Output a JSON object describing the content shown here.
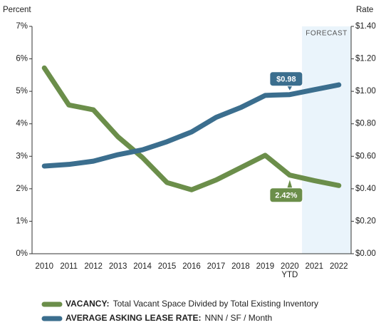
{
  "chart_data": {
    "type": "line",
    "ylabel": "Percent",
    "y2label": "Rate",
    "forecast_label": "FORECAST",
    "categories": [
      "2010",
      "2011",
      "2012",
      "2013",
      "2014",
      "2015",
      "2016",
      "2017",
      "2018",
      "2019",
      "2020 YTD",
      "2021",
      "2022"
    ],
    "forecast_from": "2021",
    "series": [
      {
        "name": "VACANCY:",
        "description": "Total Vacant Space Divided by Total Existing Inventory",
        "color": "#6b8e4a",
        "axis": "y",
        "values": [
          5.72,
          4.58,
          4.43,
          3.6,
          2.96,
          2.19,
          1.97,
          2.27,
          2.65,
          3.03,
          2.42,
          2.25,
          2.1
        ],
        "value_labels": [
          null,
          null,
          null,
          null,
          null,
          null,
          null,
          null,
          null,
          null,
          "2.42%",
          null,
          null
        ]
      },
      {
        "name": "AVERAGE ASKING LEASE RATE:",
        "description": "NNN / SF / Month",
        "color": "#3b6e8e",
        "axis": "y2",
        "values": [
          0.54,
          0.55,
          0.57,
          0.61,
          0.64,
          0.69,
          0.75,
          0.84,
          0.9,
          0.975,
          0.98,
          1.01,
          1.04
        ],
        "value_labels": [
          null,
          null,
          null,
          null,
          null,
          null,
          null,
          null,
          null,
          null,
          "$0.98",
          null,
          null
        ]
      }
    ],
    "ylim": [
      0,
      7
    ],
    "yticks": [
      {
        "value": 0,
        "label": "0%"
      },
      {
        "value": 1,
        "label": "1%"
      },
      {
        "value": 2,
        "label": "2%"
      },
      {
        "value": 3,
        "label": "3%"
      },
      {
        "value": 4,
        "label": "4%"
      },
      {
        "value": 5,
        "label": "5%"
      },
      {
        "value": 6,
        "label": "6%"
      },
      {
        "value": 7,
        "label": "7%"
      }
    ],
    "y2lim": [
      0,
      1.4
    ],
    "y2ticks": [
      {
        "value": 0,
        "label": "$0.00"
      },
      {
        "value": 0.2,
        "label": "$0.20"
      },
      {
        "value": 0.4,
        "label": "$0.40"
      },
      {
        "value": 0.6,
        "label": "$0.60"
      },
      {
        "value": 0.8,
        "label": "$0.80"
      },
      {
        "value": 1.0,
        "label": "$1.00"
      },
      {
        "value": 1.2,
        "label": "$1.20"
      },
      {
        "value": 1.4,
        "label": "$1.40"
      }
    ],
    "grid": false
  }
}
